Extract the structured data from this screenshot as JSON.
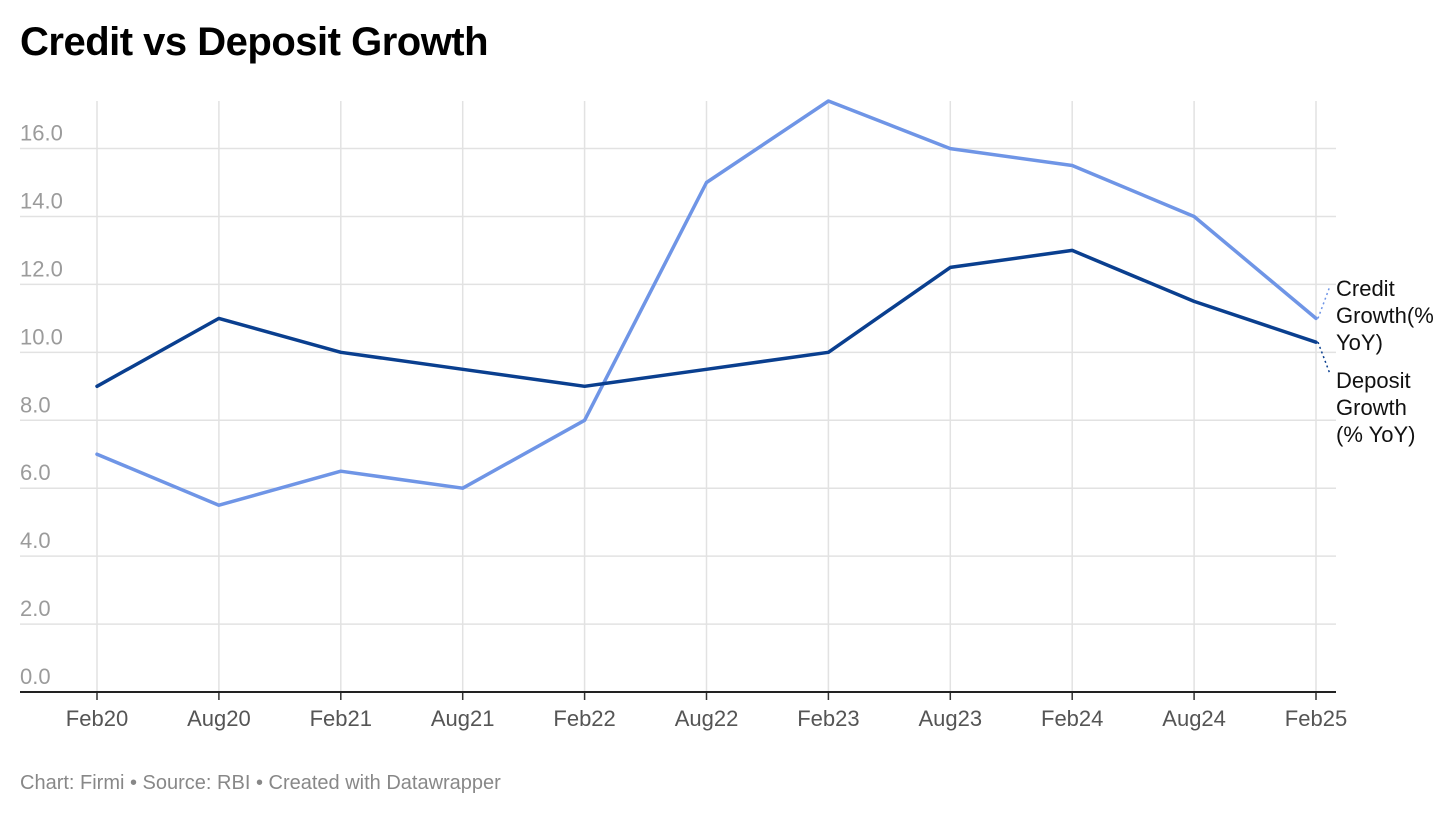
{
  "chart_data": {
    "type": "line",
    "title": "Credit vs Deposit Growth",
    "x": [
      "Feb20",
      "Aug20",
      "Feb21",
      "Aug21",
      "Feb22",
      "Aug22",
      "Feb23",
      "Aug23",
      "Feb24",
      "Aug24",
      "Feb25"
    ],
    "series": [
      {
        "name": "Credit Growth(% YoY)",
        "label_lines": [
          "Credit",
          "Growth(%",
          "YoY)"
        ],
        "color": "#6f95e6",
        "values": [
          7.0,
          5.5,
          6.5,
          6.0,
          8.0,
          15.0,
          17.4,
          16.0,
          15.5,
          14.0,
          11.0
        ]
      },
      {
        "name": "Deposit Growth (% YoY)",
        "label_lines": [
          "Deposit",
          "Growth",
          "(% YoY)"
        ],
        "color": "#0a3f8f",
        "values": [
          9.0,
          11.0,
          10.0,
          9.5,
          9.0,
          9.5,
          10.0,
          12.5,
          13.0,
          11.5,
          10.3
        ]
      }
    ],
    "yticks": [
      "0.0",
      "2.0",
      "4.0",
      "6.0",
      "8.0",
      "10.0",
      "12.0",
      "14.0",
      "16.0"
    ],
    "ylim": [
      0,
      17.4
    ],
    "grid": true,
    "legend": "right, inline labels"
  },
  "footer": "Chart: Firmi • Source: RBI • Created with Datawrapper"
}
